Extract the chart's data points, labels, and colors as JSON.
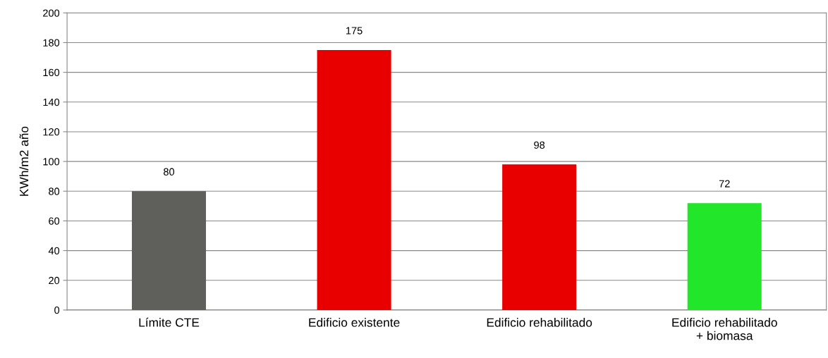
{
  "chart_data": {
    "type": "bar",
    "ylabel": "KWh/m2 año",
    "categories": [
      "Límite CTE",
      "Edificio existente",
      "Edificio rehabilitado",
      "Edificio rehabilitado\n+ biomasa"
    ],
    "values": [
      80,
      175,
      98,
      72
    ],
    "colors": [
      "#5f605b",
      "#e80000",
      "#e80000",
      "#22e62a"
    ],
    "ylim": [
      0,
      200
    ],
    "yticks": [
      0,
      20,
      40,
      60,
      80,
      100,
      120,
      140,
      160,
      180,
      200
    ],
    "grid": "y",
    "data_labels": true,
    "legend": false
  }
}
